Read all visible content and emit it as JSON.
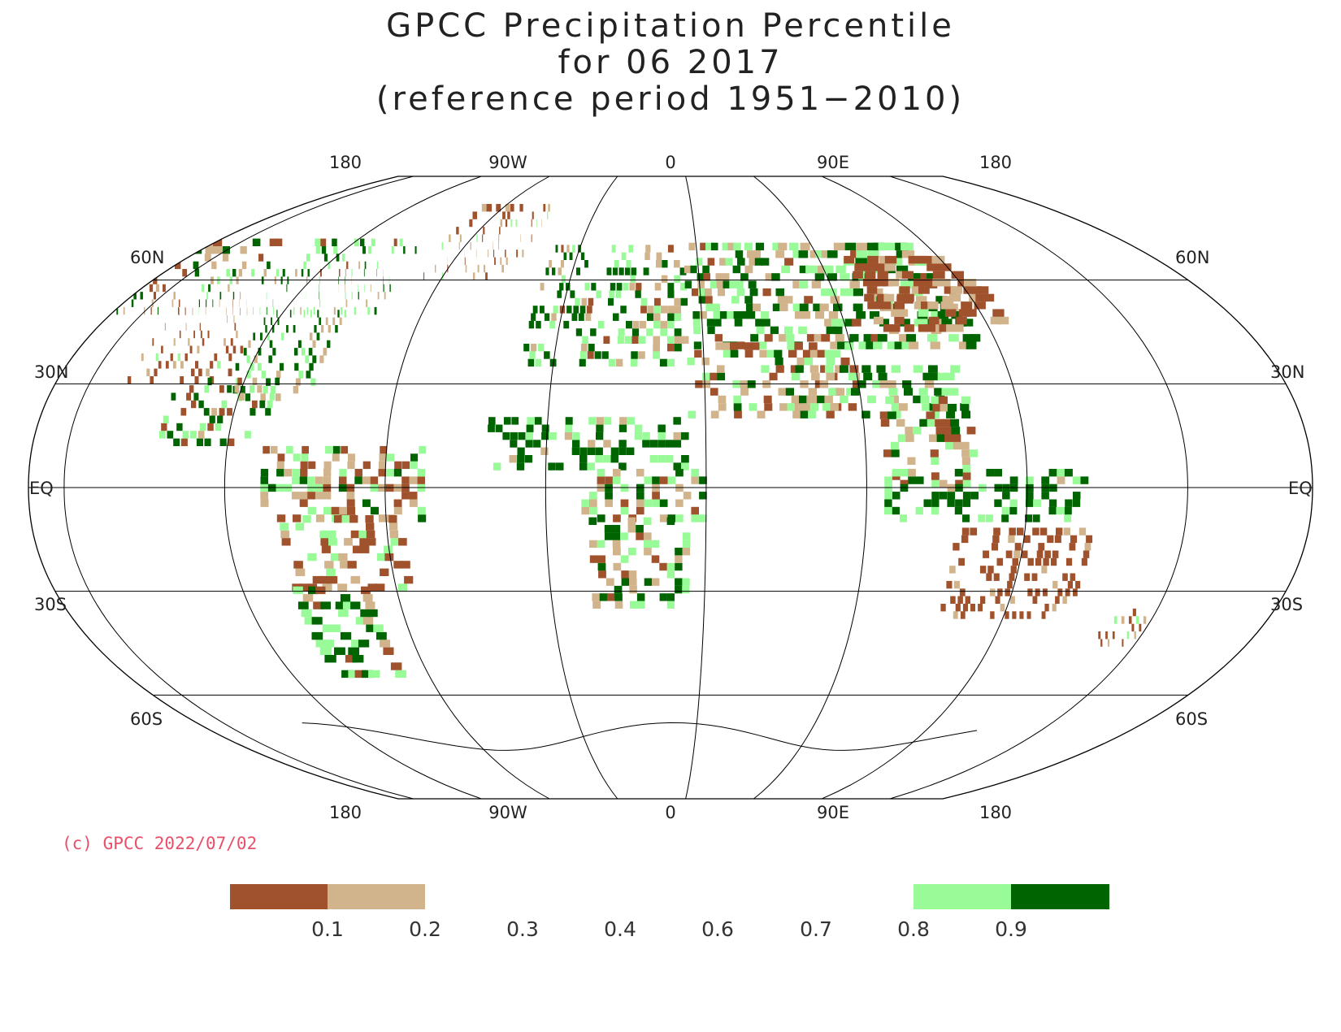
{
  "title": {
    "line1": "GPCC Precipitation Percentile",
    "line2": "for 06 2017",
    "line3": "(reference period 1951−2010)"
  },
  "map": {
    "projection": "Robinson",
    "lon_labels": [
      "180",
      "90W",
      "0",
      "90E",
      "180"
    ],
    "lat_labels": [
      "60N",
      "30N",
      "EQ",
      "30S",
      "60S"
    ],
    "colors": {
      "dry_strong": "#a0522d",
      "dry": "#d2b48c",
      "wet": "#98fb98",
      "wet_strong": "#006400"
    }
  },
  "copyright": "(c) GPCC 2022/07/02",
  "legend": {
    "ticks": [
      "0.1",
      "0.2",
      "0.3",
      "0.4",
      "0.6",
      "0.7",
      "0.8",
      "0.9"
    ],
    "bins": [
      {
        "range": "<0.1",
        "color": "#a0522d"
      },
      {
        "range": "0.1-0.2",
        "color": "#d2b48c"
      },
      {
        "range": "0.2-0.8",
        "color": "none"
      },
      {
        "range": "0.8-0.9",
        "color": "#98fb98"
      },
      {
        "range": ">0.9",
        "color": "#006400"
      }
    ]
  }
}
